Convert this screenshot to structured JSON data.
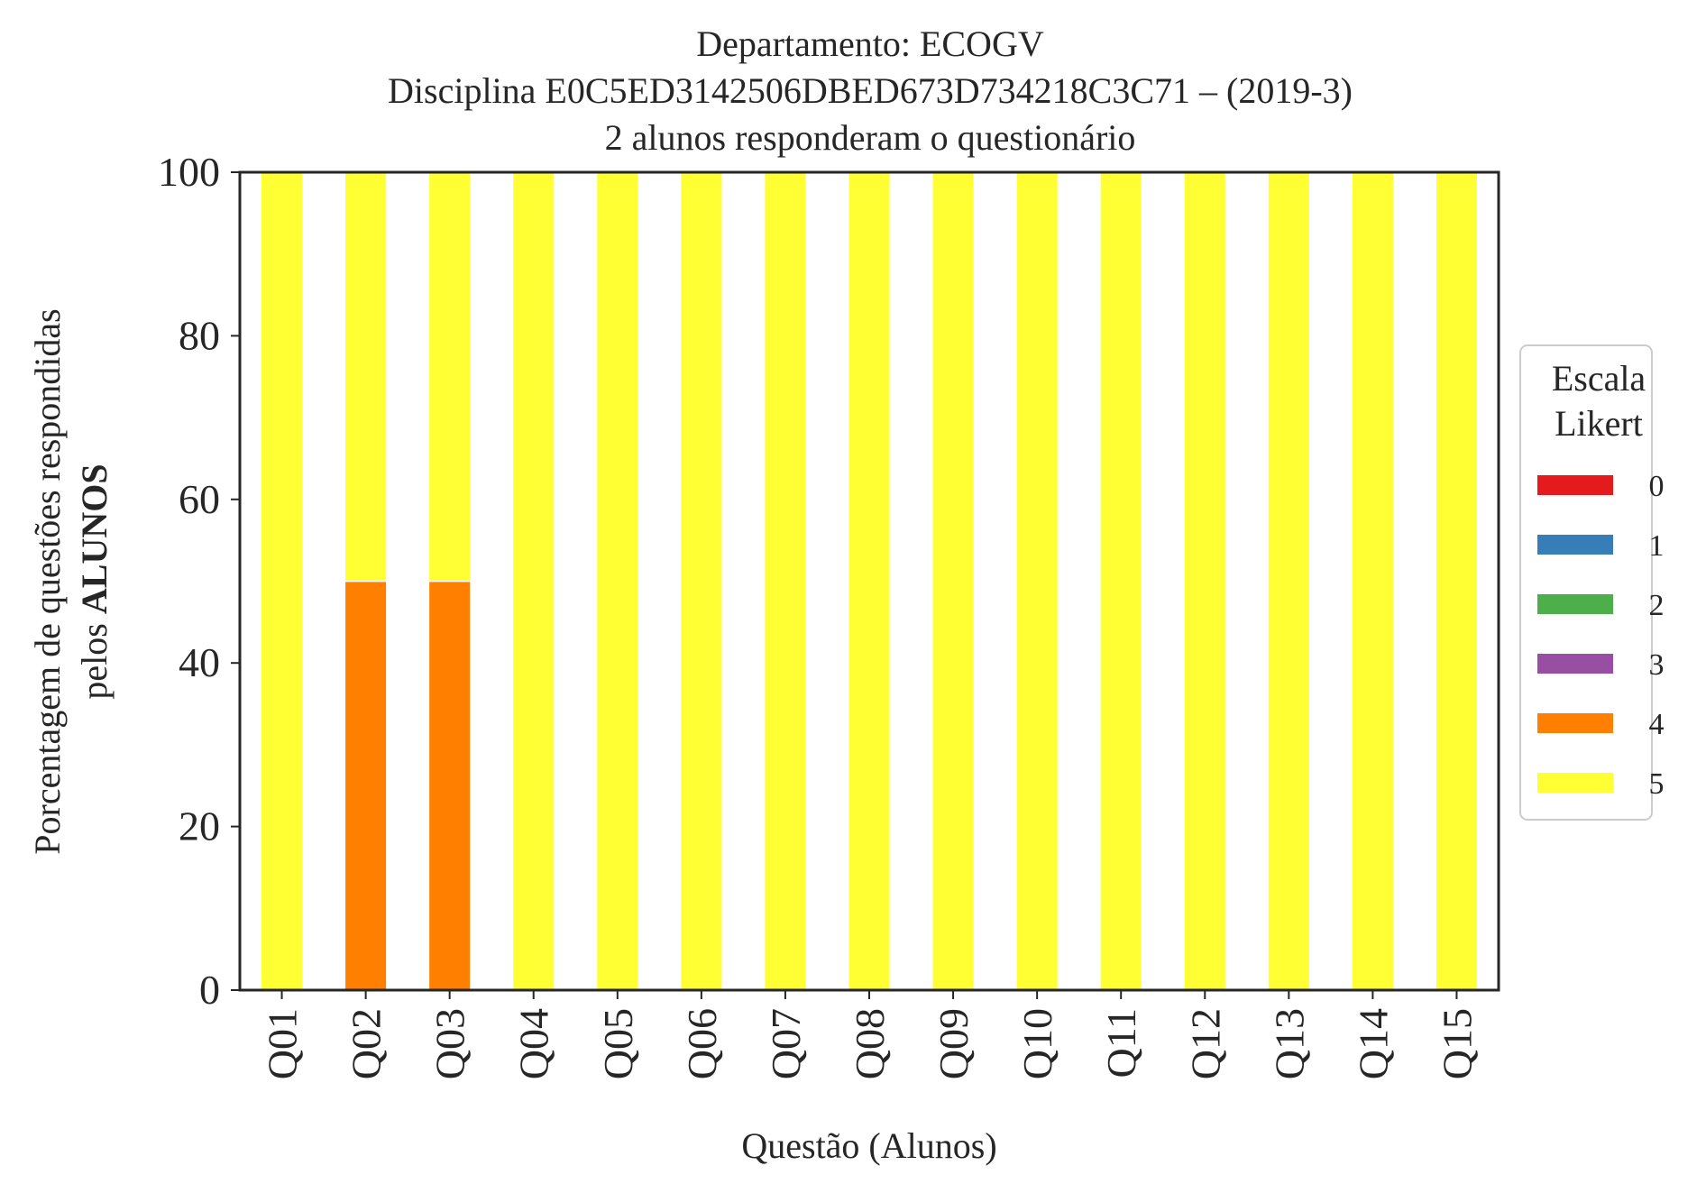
{
  "chart_data": {
    "type": "bar",
    "stacked": true,
    "title_lines": [
      "Departamento: ECOGV",
      "Disciplina E0C5ED3142506DBED673D734218C3C71 – (2019-3)",
      "2 alunos responderam o questionário"
    ],
    "xlabel": "Questão (Alunos)",
    "ylabel_line1": "Porcentagem de questões respondidas",
    "ylabel_line2_prefix": "pelos ",
    "ylabel_line2_bold": "ALUNOS",
    "ylim": [
      0,
      100
    ],
    "yticks": [
      0,
      20,
      40,
      60,
      80,
      100
    ],
    "categories": [
      "Q01",
      "Q02",
      "Q03",
      "Q04",
      "Q05",
      "Q06",
      "Q07",
      "Q08",
      "Q09",
      "Q10",
      "Q11",
      "Q12",
      "Q13",
      "Q14",
      "Q15"
    ],
    "series": [
      {
        "name": "0",
        "color": "#e41a1c",
        "values": [
          0,
          0,
          0,
          0,
          0,
          0,
          0,
          0,
          0,
          0,
          0,
          0,
          0,
          0,
          0
        ]
      },
      {
        "name": "1",
        "color": "#377eb8",
        "values": [
          0,
          0,
          0,
          0,
          0,
          0,
          0,
          0,
          0,
          0,
          0,
          0,
          0,
          0,
          0
        ]
      },
      {
        "name": "2",
        "color": "#4daf4a",
        "values": [
          0,
          0,
          0,
          0,
          0,
          0,
          0,
          0,
          0,
          0,
          0,
          0,
          0,
          0,
          0
        ]
      },
      {
        "name": "3",
        "color": "#984ea3",
        "values": [
          0,
          0,
          0,
          0,
          0,
          0,
          0,
          0,
          0,
          0,
          0,
          0,
          0,
          0,
          0
        ]
      },
      {
        "name": "4",
        "color": "#ff7f00",
        "values": [
          0,
          50,
          50,
          0,
          0,
          0,
          0,
          0,
          0,
          0,
          0,
          0,
          0,
          0,
          0
        ]
      },
      {
        "name": "5",
        "color": "#ffff33",
        "values": [
          100,
          50,
          50,
          100,
          100,
          100,
          100,
          100,
          100,
          100,
          100,
          100,
          100,
          100,
          100
        ]
      }
    ],
    "legend": {
      "title_lines": [
        "Escala",
        "Likert"
      ],
      "placement": "right"
    },
    "grid": false
  }
}
